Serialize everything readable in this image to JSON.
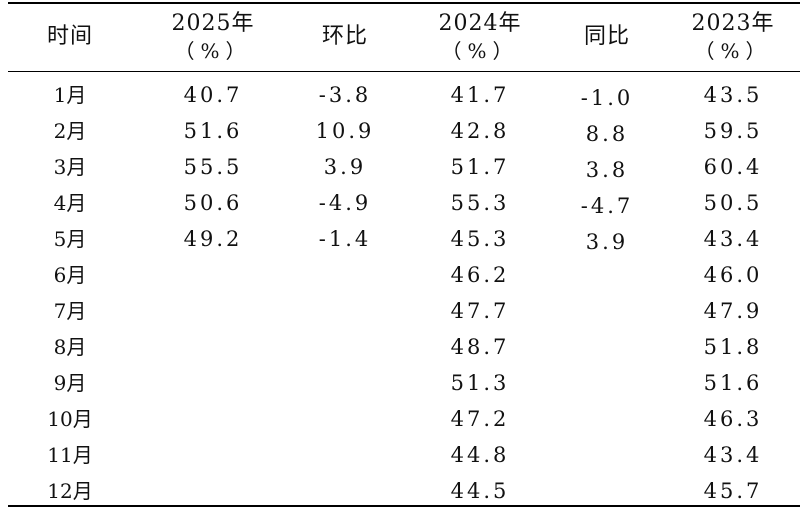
{
  "header": {
    "time": "时间",
    "y2025": "2025年",
    "y2025_unit": "（%）",
    "mom": "环比",
    "y2024": "2024年",
    "y2024_unit": "（%）",
    "yoy": "同比",
    "y2023": "2023年",
    "y2023_unit": "（%）"
  },
  "rows": [
    {
      "month": "1月",
      "v2025": "40.7",
      "mom": "-3.8",
      "v2024": "41.7",
      "yoy": "-1.0",
      "v2023": "43.5"
    },
    {
      "month": "2月",
      "v2025": "51.6",
      "mom": "10.9",
      "v2024": "42.8",
      "yoy": "8.8",
      "v2023": "59.5"
    },
    {
      "month": "3月",
      "v2025": "55.5",
      "mom": "3.9",
      "v2024": "51.7",
      "yoy": "3.8",
      "v2023": "60.4"
    },
    {
      "month": "4月",
      "v2025": "50.6",
      "mom": "-4.9",
      "v2024": "55.3",
      "yoy": "-4.7",
      "v2023": "50.5"
    },
    {
      "month": "5月",
      "v2025": "49.2",
      "mom": "-1.4",
      "v2024": "45.3",
      "yoy": "3.9",
      "v2023": "43.4"
    },
    {
      "month": "6月",
      "v2025": "",
      "mom": "",
      "v2024": "46.2",
      "yoy": "",
      "v2023": "46.0"
    },
    {
      "month": "7月",
      "v2025": "",
      "mom": "",
      "v2024": "47.7",
      "yoy": "",
      "v2023": "47.9"
    },
    {
      "month": "8月",
      "v2025": "",
      "mom": "",
      "v2024": "48.7",
      "yoy": "",
      "v2023": "51.8"
    },
    {
      "month": "9月",
      "v2025": "",
      "mom": "",
      "v2024": "51.3",
      "yoy": "",
      "v2023": "51.6"
    },
    {
      "month": "10月",
      "v2025": "",
      "mom": "",
      "v2024": "47.2",
      "yoy": "",
      "v2023": "46.3"
    },
    {
      "month": "11月",
      "v2025": "",
      "mom": "",
      "v2024": "44.8",
      "yoy": "",
      "v2023": "43.4"
    },
    {
      "month": "12月",
      "v2025": "",
      "mom": "",
      "v2024": "44.5",
      "yoy": "",
      "v2023": "45.7"
    }
  ]
}
